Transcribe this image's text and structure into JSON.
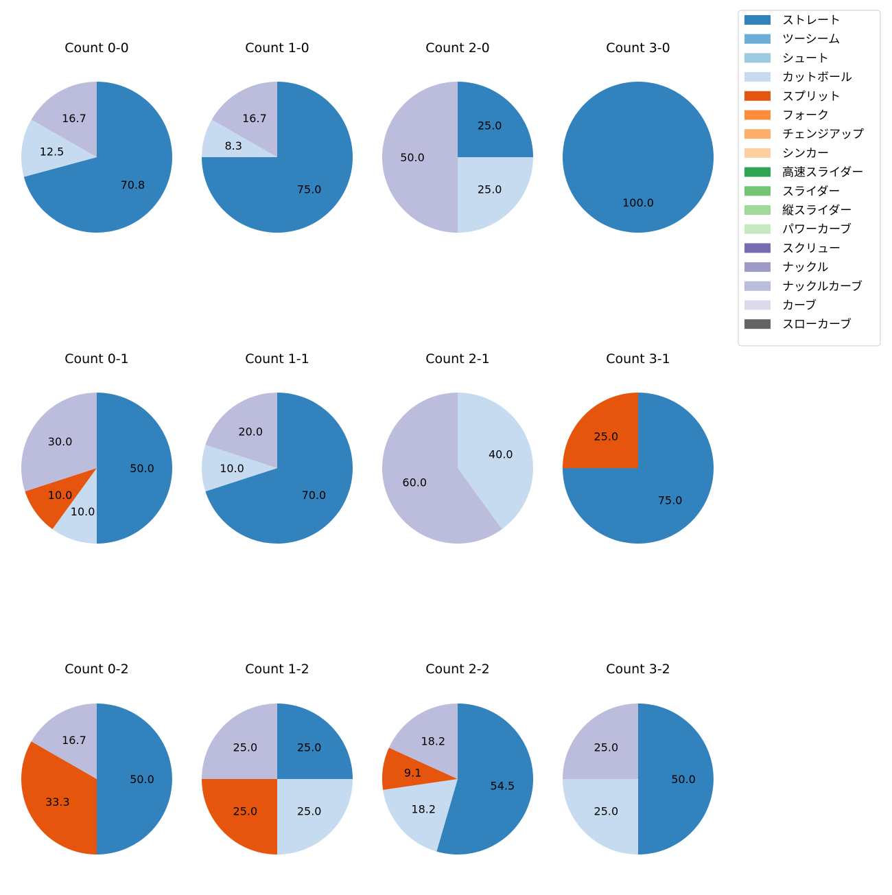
{
  "chart_data": {
    "type": "pie",
    "legend": {
      "placement": "top-right",
      "entries": [
        {
          "name": "ストレート",
          "color": "#3182bd"
        },
        {
          "name": "ツーシーム",
          "color": "#6baed6"
        },
        {
          "name": "シュート",
          "color": "#9ecae1"
        },
        {
          "name": "カットボール",
          "color": "#c6dbef"
        },
        {
          "name": "スプリット",
          "color": "#e6550d"
        },
        {
          "name": "フォーク",
          "color": "#fd8d3c"
        },
        {
          "name": "チェンジアップ",
          "color": "#fdae6b"
        },
        {
          "name": "シンカー",
          "color": "#fdd0a2"
        },
        {
          "name": "高速スライダー",
          "color": "#31a354"
        },
        {
          "name": "スライダー",
          "color": "#74c476"
        },
        {
          "name": "縦スライダー",
          "color": "#a1d99b"
        },
        {
          "name": "パワーカーブ",
          "color": "#c7e9c0"
        },
        {
          "name": "スクリュー",
          "color": "#756bb1"
        },
        {
          "name": "ナックル",
          "color": "#9e9ac8"
        },
        {
          "name": "ナックルカーブ",
          "color": "#bcbddc"
        },
        {
          "name": "カーブ",
          "color": "#dadaeb"
        },
        {
          "name": "スローカーブ",
          "color": "#636363"
        }
      ]
    },
    "charts": [
      {
        "title": "Count 0-0",
        "slices": [
          {
            "name": "ストレート",
            "value": 70.8
          },
          {
            "name": "カットボール",
            "value": 12.5
          },
          {
            "name": "ナックルカーブ",
            "value": 16.7
          }
        ]
      },
      {
        "title": "Count 1-0",
        "slices": [
          {
            "name": "ストレート",
            "value": 75.0
          },
          {
            "name": "カットボール",
            "value": 8.3
          },
          {
            "name": "ナックルカーブ",
            "value": 16.7
          }
        ]
      },
      {
        "title": "Count 2-0",
        "slices": [
          {
            "name": "ストレート",
            "value": 25.0
          },
          {
            "name": "カットボール",
            "value": 25.0
          },
          {
            "name": "ナックルカーブ",
            "value": 50.0
          }
        ]
      },
      {
        "title": "Count 3-0",
        "slices": [
          {
            "name": "ストレート",
            "value": 100.0
          }
        ]
      },
      {
        "title": "Count 0-1",
        "slices": [
          {
            "name": "ストレート",
            "value": 50.0
          },
          {
            "name": "カットボール",
            "value": 10.0
          },
          {
            "name": "スプリット",
            "value": 10.0
          },
          {
            "name": "ナックルカーブ",
            "value": 30.0
          }
        ]
      },
      {
        "title": "Count 1-1",
        "slices": [
          {
            "name": "ストレート",
            "value": 70.0
          },
          {
            "name": "カットボール",
            "value": 10.0
          },
          {
            "name": "ナックルカーブ",
            "value": 20.0
          }
        ]
      },
      {
        "title": "Count 2-1",
        "slices": [
          {
            "name": "カットボール",
            "value": 40.0
          },
          {
            "name": "ナックルカーブ",
            "value": 60.0
          }
        ]
      },
      {
        "title": "Count 3-1",
        "slices": [
          {
            "name": "ストレート",
            "value": 75.0
          },
          {
            "name": "スプリット",
            "value": 25.0
          }
        ]
      },
      {
        "title": "Count 0-2",
        "slices": [
          {
            "name": "ストレート",
            "value": 50.0
          },
          {
            "name": "スプリット",
            "value": 33.3
          },
          {
            "name": "ナックルカーブ",
            "value": 16.7
          }
        ]
      },
      {
        "title": "Count 1-2",
        "slices": [
          {
            "name": "ストレート",
            "value": 25.0
          },
          {
            "name": "カットボール",
            "value": 25.0
          },
          {
            "name": "スプリット",
            "value": 25.0
          },
          {
            "name": "ナックルカーブ",
            "value": 25.0
          }
        ]
      },
      {
        "title": "Count 2-2",
        "slices": [
          {
            "name": "ストレート",
            "value": 54.5
          },
          {
            "name": "カットボール",
            "value": 18.2
          },
          {
            "name": "スプリット",
            "value": 9.1
          },
          {
            "name": "ナックルカーブ",
            "value": 18.2
          }
        ]
      },
      {
        "title": "Count 3-2",
        "slices": [
          {
            "name": "ストレート",
            "value": 50.0
          },
          {
            "name": "カットボール",
            "value": 25.0
          },
          {
            "name": "ナックルカーブ",
            "value": 25.0
          }
        ]
      }
    ]
  }
}
